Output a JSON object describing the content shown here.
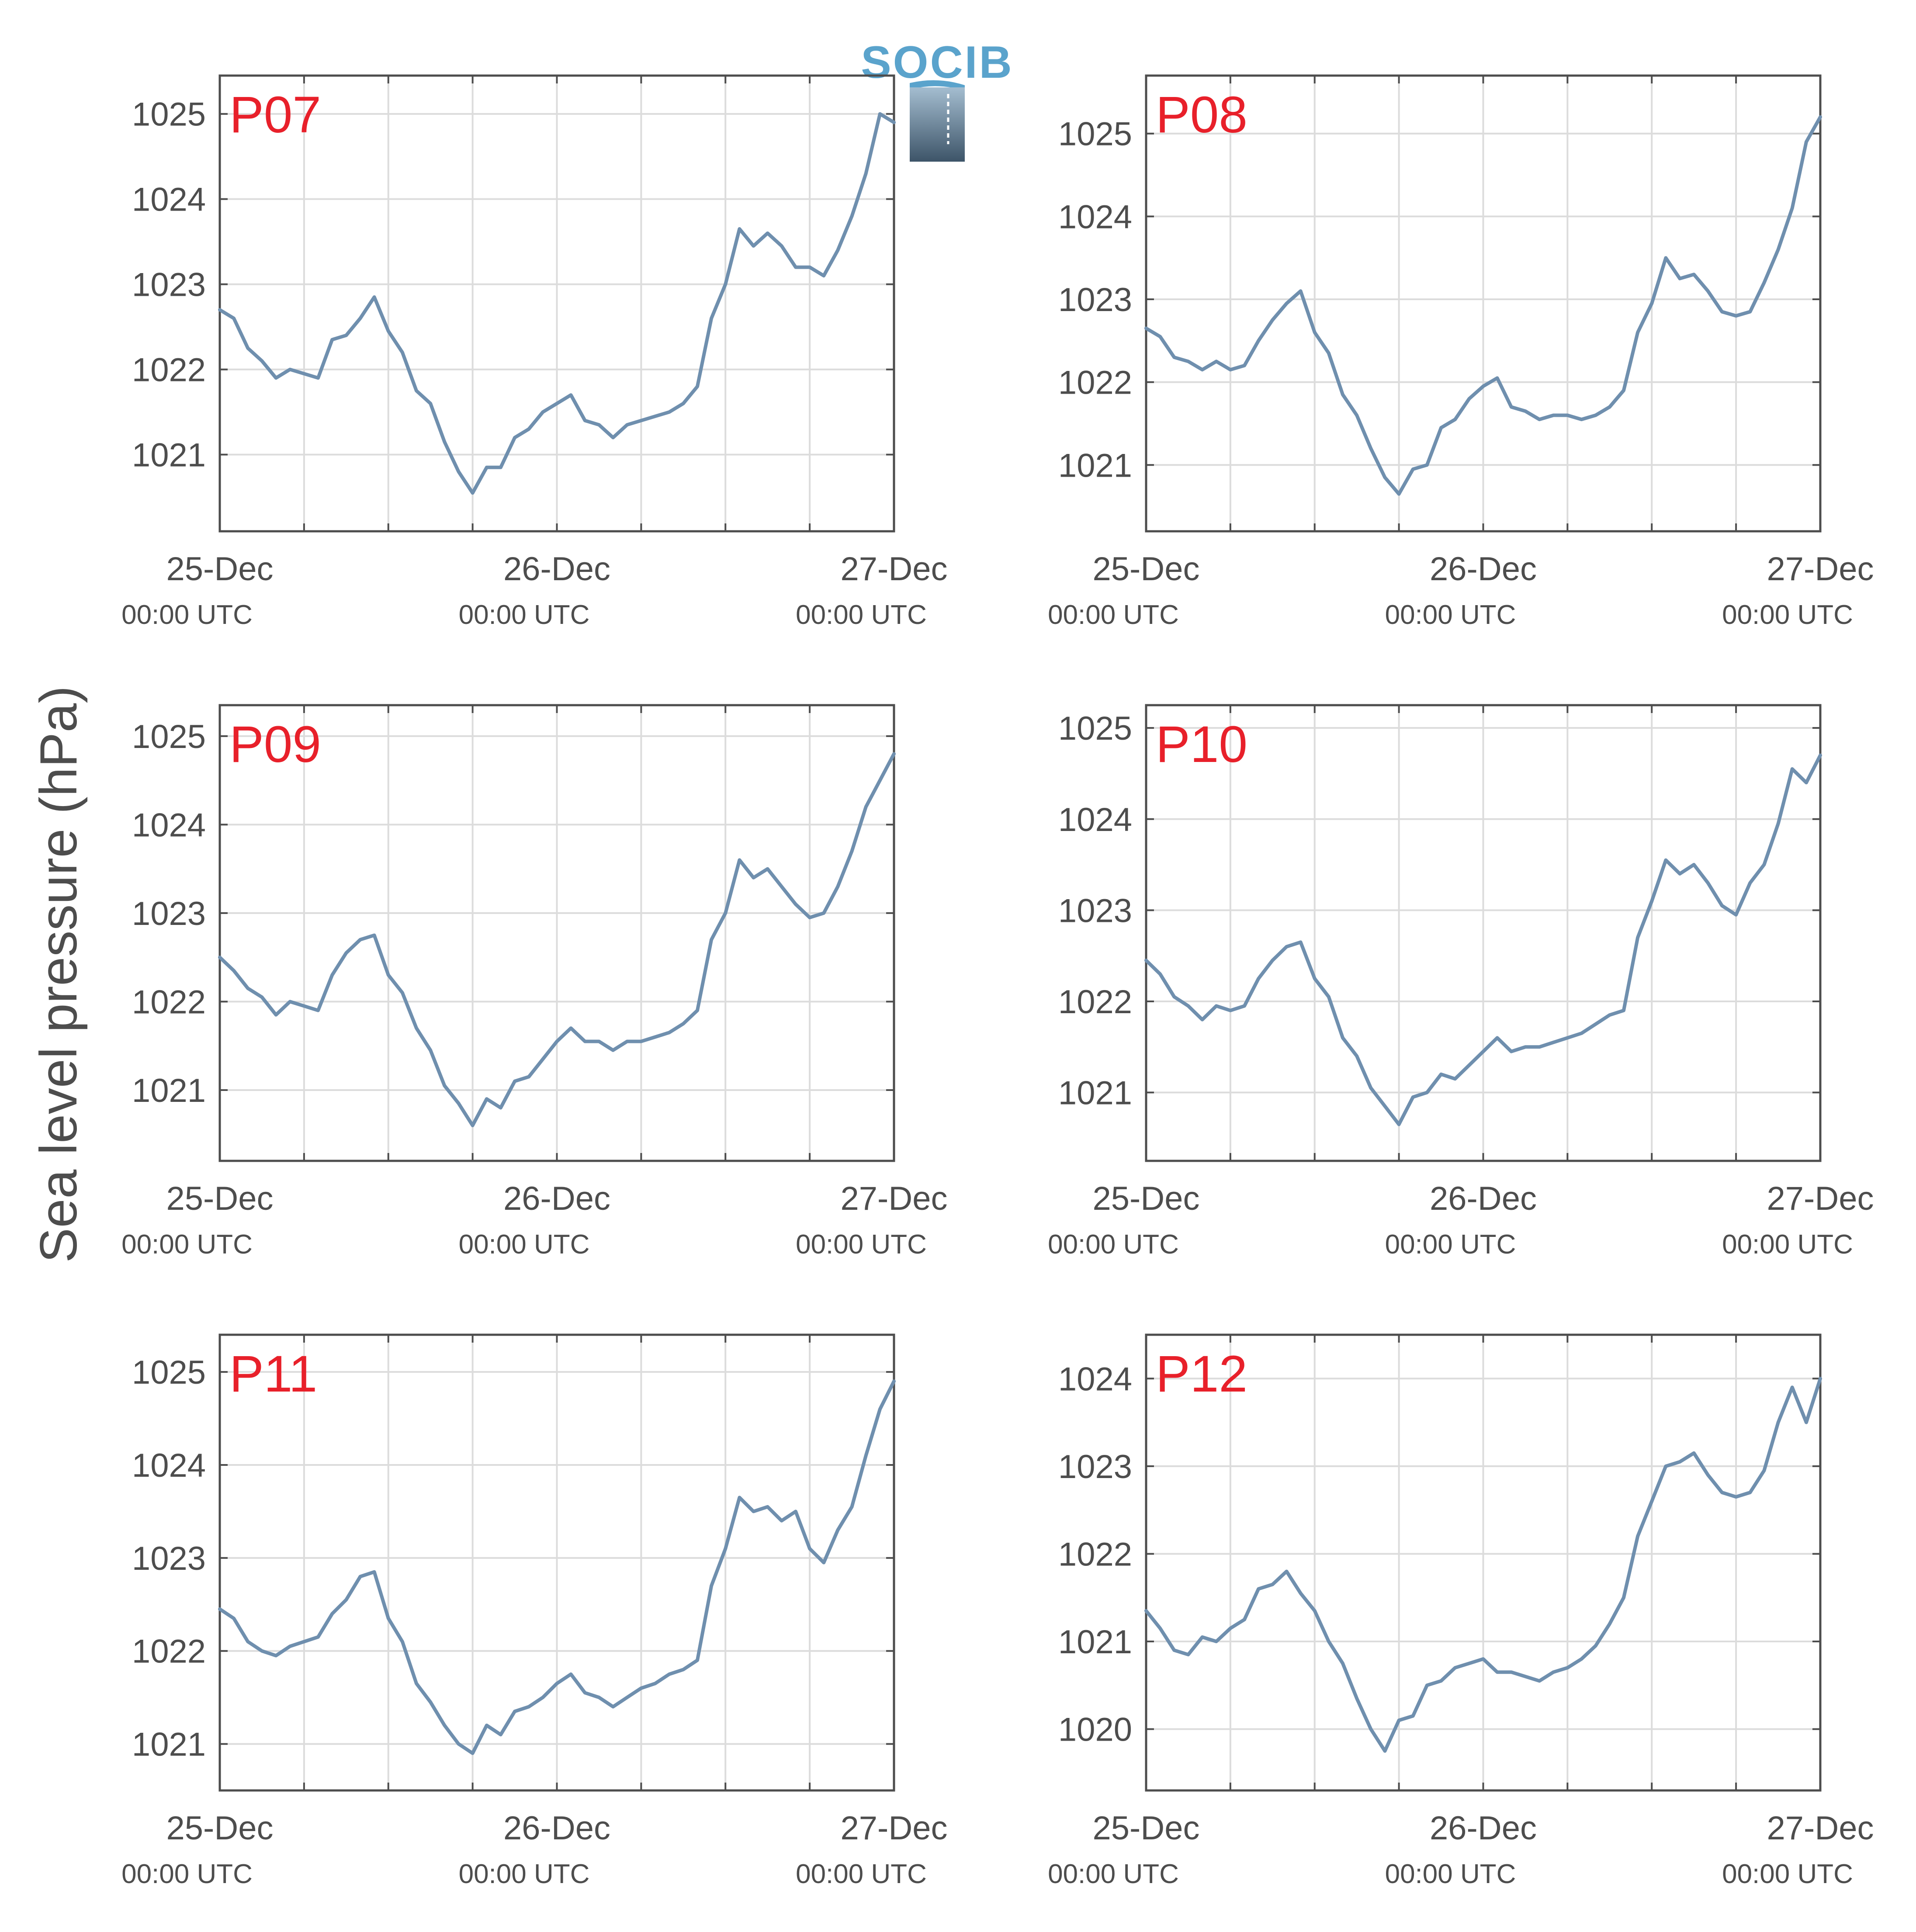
{
  "figure": {
    "ylabel": "Sea level pressure (hPa)",
    "logo_text": "SOCIB",
    "line_color": "#6f8fae",
    "label_color": "#e8202a",
    "axis_color": "#4d4d4d",
    "grid_color": "#dcdcdc"
  },
  "chart_data": [
    {
      "type": "line",
      "title": "P07",
      "x_tick_labels": [
        {
          "date": "25-Dec",
          "time": "00:00 UTC"
        },
        {
          "date": "26-Dec",
          "time": "00:00 UTC"
        },
        {
          "date": "27-Dec",
          "time": "00:00 UTC"
        }
      ],
      "xlim": [
        0,
        48
      ],
      "ylim": [
        1020.1,
        1025.45
      ],
      "yticks": [
        1021,
        1022,
        1023,
        1024,
        1025
      ],
      "grid": true,
      "series": [
        {
          "x": [
            0,
            1,
            2,
            3,
            4,
            5,
            6,
            7,
            8,
            9,
            10,
            11,
            12,
            13,
            14,
            15,
            16,
            17,
            18,
            19,
            20,
            21,
            22,
            23,
            24,
            25,
            26,
            27,
            28,
            29,
            30,
            31,
            32,
            33,
            34,
            35,
            36,
            37,
            38,
            39,
            40,
            41,
            42,
            43,
            44,
            45,
            46,
            47,
            48
          ],
          "values": [
            1022.7,
            1022.6,
            1022.25,
            1022.1,
            1021.9,
            1022.0,
            1021.95,
            1021.9,
            1022.35,
            1022.4,
            1022.6,
            1022.85,
            1022.45,
            1022.2,
            1021.75,
            1021.6,
            1021.15,
            1020.8,
            1020.55,
            1020.85,
            1020.85,
            1021.2,
            1021.3,
            1021.5,
            1021.6,
            1021.7,
            1021.4,
            1021.35,
            1021.2,
            1021.35,
            1021.4,
            1021.45,
            1021.5,
            1021.6,
            1021.8,
            1022.6,
            1023.0,
            1023.65,
            1023.45,
            1023.6,
            1023.45,
            1023.2,
            1023.2,
            1023.1,
            1023.4,
            1023.8,
            1024.3,
            1025.0,
            1024.9
          ]
        }
      ]
    },
    {
      "type": "line",
      "title": "P08",
      "x_tick_labels": [
        {
          "date": "25-Dec",
          "time": "00:00 UTC"
        },
        {
          "date": "26-Dec",
          "time": "00:00 UTC"
        },
        {
          "date": "27-Dec",
          "time": "00:00 UTC"
        }
      ],
      "xlim": [
        0,
        48
      ],
      "ylim": [
        1020.2,
        1025.7
      ],
      "yticks": [
        1021,
        1022,
        1023,
        1024,
        1025
      ],
      "grid": true,
      "series": [
        {
          "x": [
            0,
            1,
            2,
            3,
            4,
            5,
            6,
            7,
            8,
            9,
            10,
            11,
            12,
            13,
            14,
            15,
            16,
            17,
            18,
            19,
            20,
            21,
            22,
            23,
            24,
            25,
            26,
            27,
            28,
            29,
            30,
            31,
            32,
            33,
            34,
            35,
            36,
            37,
            38,
            39,
            40,
            41,
            42,
            43,
            44,
            45,
            46,
            47,
            48
          ],
          "values": [
            1022.65,
            1022.55,
            1022.3,
            1022.25,
            1022.15,
            1022.25,
            1022.15,
            1022.2,
            1022.5,
            1022.75,
            1022.95,
            1023.1,
            1022.6,
            1022.35,
            1021.85,
            1021.6,
            1021.2,
            1020.85,
            1020.65,
            1020.95,
            1021.0,
            1021.45,
            1021.55,
            1021.8,
            1021.95,
            1022.05,
            1021.7,
            1021.65,
            1021.55,
            1021.6,
            1021.6,
            1021.55,
            1021.6,
            1021.7,
            1021.9,
            1022.6,
            1022.95,
            1023.5,
            1023.25,
            1023.3,
            1023.1,
            1022.85,
            1022.8,
            1022.85,
            1023.2,
            1023.6,
            1024.1,
            1024.9,
            1025.2
          ]
        }
      ]
    },
    {
      "type": "line",
      "title": "P09",
      "x_tick_labels": [
        {
          "date": "25-Dec",
          "time": "00:00 UTC"
        },
        {
          "date": "26-Dec",
          "time": "00:00 UTC"
        },
        {
          "date": "27-Dec",
          "time": "00:00 UTC"
        }
      ],
      "xlim": [
        0,
        48
      ],
      "ylim": [
        1020.2,
        1025.35
      ],
      "yticks": [
        1021,
        1022,
        1023,
        1024,
        1025
      ],
      "grid": true,
      "series": [
        {
          "x": [
            0,
            1,
            2,
            3,
            4,
            5,
            6,
            7,
            8,
            9,
            10,
            11,
            12,
            13,
            14,
            15,
            16,
            17,
            18,
            19,
            20,
            21,
            22,
            23,
            24,
            25,
            26,
            27,
            28,
            29,
            30,
            31,
            32,
            33,
            34,
            35,
            36,
            37,
            38,
            39,
            40,
            41,
            42,
            43,
            44,
            45,
            46,
            47,
            48
          ],
          "values": [
            1022.5,
            1022.35,
            1022.15,
            1022.05,
            1021.85,
            1022.0,
            1021.95,
            1021.9,
            1022.3,
            1022.55,
            1022.7,
            1022.75,
            1022.3,
            1022.1,
            1021.7,
            1021.45,
            1021.05,
            1020.85,
            1020.6,
            1020.9,
            1020.8,
            1021.1,
            1021.15,
            1021.35,
            1021.55,
            1021.7,
            1021.55,
            1021.55,
            1021.45,
            1021.55,
            1021.55,
            1021.6,
            1021.65,
            1021.75,
            1021.9,
            1022.7,
            1023.0,
            1023.6,
            1023.4,
            1023.5,
            1023.3,
            1023.1,
            1022.95,
            1023.0,
            1023.3,
            1023.7,
            1024.2,
            1024.5,
            1024.8
          ]
        }
      ]
    },
    {
      "type": "line",
      "title": "P10",
      "x_tick_labels": [
        {
          "date": "25-Dec",
          "time": "00:00 UTC"
        },
        {
          "date": "26-Dec",
          "time": "00:00 UTC"
        },
        {
          "date": "27-Dec",
          "time": "00:00 UTC"
        }
      ],
      "xlim": [
        0,
        48
      ],
      "ylim": [
        1020.25,
        1025.25
      ],
      "yticks": [
        1021,
        1022,
        1023,
        1024,
        1025
      ],
      "grid": true,
      "series": [
        {
          "x": [
            0,
            1,
            2,
            3,
            4,
            5,
            6,
            7,
            8,
            9,
            10,
            11,
            12,
            13,
            14,
            15,
            16,
            17,
            18,
            19,
            20,
            21,
            22,
            23,
            24,
            25,
            26,
            27,
            28,
            29,
            30,
            31,
            32,
            33,
            34,
            35,
            36,
            37,
            38,
            39,
            40,
            41,
            42,
            43,
            44,
            45,
            46,
            47,
            48
          ],
          "values": [
            1022.45,
            1022.3,
            1022.05,
            1021.95,
            1021.8,
            1021.95,
            1021.9,
            1021.95,
            1022.25,
            1022.45,
            1022.6,
            1022.65,
            1022.25,
            1022.05,
            1021.6,
            1021.4,
            1021.05,
            1020.85,
            1020.65,
            1020.95,
            1021.0,
            1021.2,
            1021.15,
            1021.3,
            1021.45,
            1021.6,
            1021.45,
            1021.5,
            1021.5,
            1021.55,
            1021.6,
            1021.65,
            1021.75,
            1021.85,
            1021.9,
            1022.7,
            1023.1,
            1023.55,
            1023.4,
            1023.5,
            1023.3,
            1023.05,
            1022.95,
            1023.3,
            1023.5,
            1023.95,
            1024.55,
            1024.4,
            1024.7
          ]
        }
      ]
    },
    {
      "type": "line",
      "title": "P11",
      "x_tick_labels": [
        {
          "date": "25-Dec",
          "time": "00:00 UTC"
        },
        {
          "date": "26-Dec",
          "time": "00:00 UTC"
        },
        {
          "date": "27-Dec",
          "time": "00:00 UTC"
        }
      ],
      "xlim": [
        0,
        48
      ],
      "ylim": [
        1020.5,
        1025.4
      ],
      "yticks": [
        1021,
        1022,
        1023,
        1024,
        1025
      ],
      "grid": true,
      "series": [
        {
          "x": [
            0,
            1,
            2,
            3,
            4,
            5,
            6,
            7,
            8,
            9,
            10,
            11,
            12,
            13,
            14,
            15,
            16,
            17,
            18,
            19,
            20,
            21,
            22,
            23,
            24,
            25,
            26,
            27,
            28,
            29,
            30,
            31,
            32,
            33,
            34,
            35,
            36,
            37,
            38,
            39,
            40,
            41,
            42,
            43,
            44,
            45,
            46,
            47,
            48
          ],
          "values": [
            1022.45,
            1022.35,
            1022.1,
            1022.0,
            1021.95,
            1022.05,
            1022.1,
            1022.15,
            1022.4,
            1022.55,
            1022.8,
            1022.85,
            1022.35,
            1022.1,
            1021.65,
            1021.45,
            1021.2,
            1021.0,
            1020.9,
            1021.2,
            1021.1,
            1021.35,
            1021.4,
            1021.5,
            1021.65,
            1021.75,
            1021.55,
            1021.5,
            1021.4,
            1021.5,
            1021.6,
            1021.65,
            1021.75,
            1021.8,
            1021.9,
            1022.7,
            1023.1,
            1023.65,
            1023.5,
            1023.55,
            1023.4,
            1023.5,
            1023.1,
            1022.95,
            1023.3,
            1023.55,
            1024.1,
            1024.6,
            1024.9
          ]
        }
      ]
    },
    {
      "type": "line",
      "title": "P12",
      "x_tick_labels": [
        {
          "date": "25-Dec",
          "time": "00:00 UTC"
        },
        {
          "date": "26-Dec",
          "time": "00:00 UTC"
        },
        {
          "date": "27-Dec",
          "time": "00:00 UTC"
        }
      ],
      "xlim": [
        0,
        48
      ],
      "ylim": [
        1019.3,
        1024.5
      ],
      "yticks": [
        1020,
        1021,
        1022,
        1023,
        1024
      ],
      "grid": true,
      "series": [
        {
          "x": [
            0,
            1,
            2,
            3,
            4,
            5,
            6,
            7,
            8,
            9,
            10,
            11,
            12,
            13,
            14,
            15,
            16,
            17,
            18,
            19,
            20,
            21,
            22,
            23,
            24,
            25,
            26,
            27,
            28,
            29,
            30,
            31,
            32,
            33,
            34,
            35,
            36,
            37,
            38,
            39,
            40,
            41,
            42,
            43,
            44,
            45,
            46,
            47,
            48
          ],
          "values": [
            1021.35,
            1021.15,
            1020.9,
            1020.85,
            1021.05,
            1021.0,
            1021.15,
            1021.25,
            1021.6,
            1021.65,
            1021.8,
            1021.55,
            1021.35,
            1021.0,
            1020.75,
            1020.35,
            1020.0,
            1019.75,
            1020.1,
            1020.15,
            1020.5,
            1020.55,
            1020.7,
            1020.75,
            1020.8,
            1020.65,
            1020.65,
            1020.6,
            1020.55,
            1020.65,
            1020.7,
            1020.8,
            1020.95,
            1021.2,
            1021.5,
            1022.2,
            1022.6,
            1023.0,
            1023.05,
            1023.15,
            1022.9,
            1022.7,
            1022.65,
            1022.7,
            1022.95,
            1023.5,
            1023.9,
            1023.5,
            1024.0
          ]
        }
      ]
    }
  ]
}
